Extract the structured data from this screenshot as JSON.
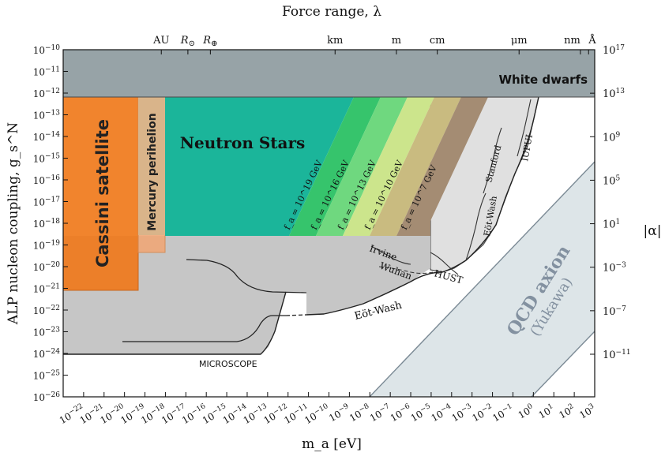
{
  "chart_data": {
    "type": "area",
    "title": "",
    "xlabel": "m_a [eV]",
    "ylabel": "ALP nucleon coupling, g_s^N",
    "top_xlabel": "Force range, λ",
    "right_ylabel": "|α|",
    "xscale": "log",
    "yscale": "log",
    "xlim": [
      1e-23,
      1000
    ],
    "ylim": [
      1e-26,
      1e-10
    ],
    "x_ticks": [
      "10^-22",
      "10^-21",
      "10^-20",
      "10^-19",
      "10^-18",
      "10^-17",
      "10^-16",
      "10^-15",
      "10^-14",
      "10^-13",
      "10^-12",
      "10^-11",
      "10^-10",
      "10^-9",
      "10^-8",
      "10^-7",
      "10^-6",
      "10^-5",
      "10^-4",
      "10^-3",
      "10^-2",
      "10^-1",
      "10^0",
      "10^1",
      "10^2",
      "10^3"
    ],
    "y_ticks": [
      "10^-26",
      "10^-25",
      "10^-24",
      "10^-23",
      "10^-22",
      "10^-21",
      "10^-20",
      "10^-19",
      "10^-18",
      "10^-17",
      "10^-16",
      "10^-15",
      "10^-14",
      "10^-13",
      "10^-12",
      "10^-11",
      "10^-10"
    ],
    "top_ticks": [
      "AU",
      "R_⊙",
      "R_⊕",
      "km",
      "m",
      "cm",
      "μm",
      "nm",
      "Å"
    ],
    "right_ticks": [
      "10^17",
      "10^13",
      "10^9",
      "10^5",
      "10^1",
      "10^-3",
      "10^-7",
      "10^-11"
    ],
    "regions": [
      {
        "name": "White dwarfs",
        "x": [
          1e-23,
          1000
        ],
        "y": [
          1e-12,
          1e-10
        ]
      },
      {
        "name": "Cassini satellite",
        "x": [
          1e-23,
          1e-20
        ],
        "y": [
          1e-21,
          1e-12
        ]
      },
      {
        "name": "Mercury perihelion",
        "x": [
          1e-20,
          1.3e-19
        ],
        "y": [
          4e-20,
          1e-12
        ]
      },
      {
        "name": "Neutron Stars",
        "x": [
          1e-19,
          1e-05
        ],
        "y": [
          1e-19,
          1e-12
        ]
      }
    ],
    "fa_bands": [
      {
        "label": "f_a = 10^19 GeV"
      },
      {
        "label": "f_a = 10^16 GeV"
      },
      {
        "label": "f_a = 10^13 GeV"
      },
      {
        "label": "f_a = 10^10 GeV"
      },
      {
        "label": "f_a = 10^7 GeV"
      }
    ],
    "experiments": [
      "MICROSCOPE",
      "Eöt-Wash",
      "Irvine",
      "Wuhan",
      "HUST",
      "Eöt-Wash",
      "Stanford",
      "IUPUI"
    ],
    "qcd": {
      "label": "QCD axion",
      "sublabel": "(Yukawa)"
    }
  }
}
